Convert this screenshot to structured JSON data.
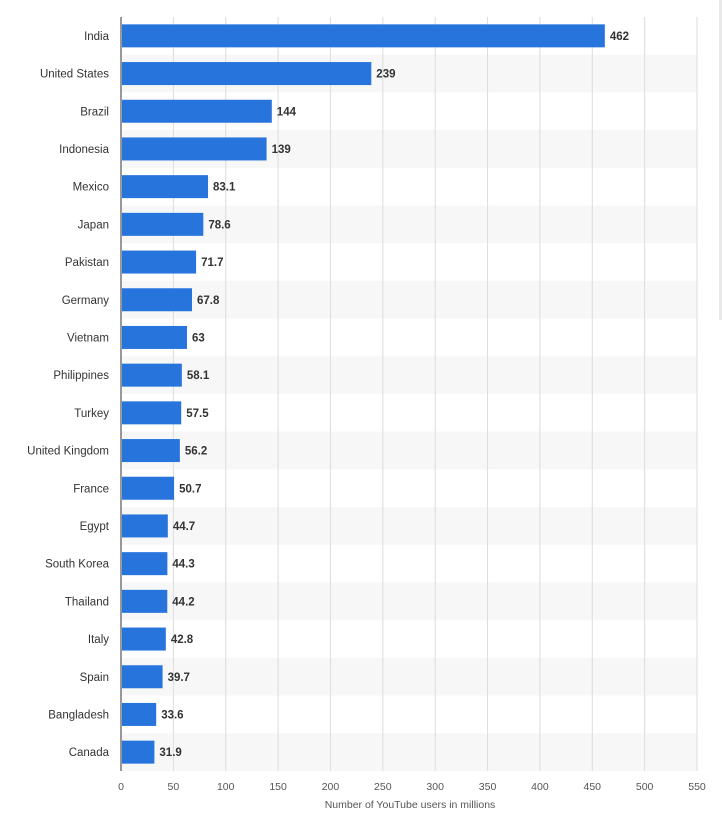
{
  "chart_data": {
    "type": "bar",
    "orientation": "horizontal",
    "categories": [
      "India",
      "United States",
      "Brazil",
      "Indonesia",
      "Mexico",
      "Japan",
      "Pakistan",
      "Germany",
      "Vietnam",
      "Philippines",
      "Turkey",
      "United Kingdom",
      "France",
      "Egypt",
      "South Korea",
      "Thailand",
      "Italy",
      "Spain",
      "Bangladesh",
      "Canada"
    ],
    "values": [
      462,
      239,
      144,
      139,
      83.1,
      78.6,
      71.7,
      67.8,
      63,
      58.1,
      57.5,
      56.2,
      50.7,
      44.7,
      44.3,
      44.2,
      42.8,
      39.7,
      33.6,
      31.9
    ],
    "value_labels": [
      "462",
      "239",
      "144",
      "139",
      "83.1",
      "78.6",
      "71.7",
      "67.8",
      "63",
      "58.1",
      "57.5",
      "56.2",
      "50.7",
      "44.7",
      "44.3",
      "44.2",
      "42.8",
      "39.7",
      "33.6",
      "31.9"
    ],
    "xlabel": "Number of YouTube users in millions",
    "ylabel": "",
    "xlim": [
      0,
      550
    ],
    "xticks": [
      "0",
      "50",
      "100",
      "150",
      "200",
      "250",
      "300",
      "350",
      "400",
      "450",
      "500",
      "550"
    ],
    "grid": true,
    "legend": "none",
    "colors": {
      "bar": "#2774dd",
      "band": "#f7f7f7",
      "grid": "#dcdcdc",
      "axis": "#333333",
      "text": "#333333"
    }
  }
}
